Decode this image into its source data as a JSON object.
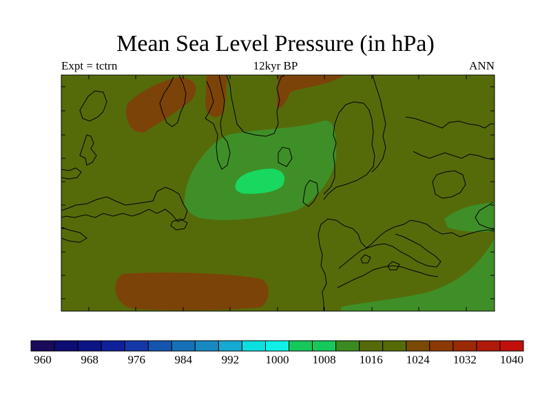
{
  "chart_data": {
    "type": "heatmap",
    "title": "Mean Sea Level Pressure (in hPa)",
    "subtitle_left": "Expt = tctrn",
    "subtitle_center": "12kyr BP",
    "subtitle_right": "ANN",
    "units": "hPa",
    "colorbar": {
      "levels": [
        960,
        964,
        968,
        972,
        976,
        980,
        984,
        988,
        992,
        996,
        1000,
        1004,
        1008,
        1012,
        1016,
        1020,
        1024,
        1028,
        1032,
        1036,
        1040
      ],
      "labels": [
        "960",
        "968",
        "976",
        "984",
        "992",
        "1000",
        "1008",
        "1016",
        "1024",
        "1032",
        "1040"
      ],
      "colors": [
        "#1a0a5a",
        "#0d0d73",
        "#0d1486",
        "#10209a",
        "#1438a8",
        "#1555b0",
        "#1670b8",
        "#1889c0",
        "#15aad2",
        "#0ddfe0",
        "#10f0e8",
        "#14c85a",
        "#16c85c",
        "#3c8a22",
        "#556b0a",
        "#556b0a",
        "#7a4a05",
        "#8c3a05",
        "#9a2a04",
        "#b01a0a",
        "#c0100c"
      ]
    },
    "regions": [
      {
        "name": "low-center",
        "level": 1004,
        "color": "#18d860"
      },
      {
        "name": "low-ring",
        "level": 1008,
        "color": "#3f8f28"
      },
      {
        "name": "low-east",
        "level": 1008,
        "color": "#3f8f28"
      },
      {
        "name": "low-southeast",
        "level": 1008,
        "color": "#3f8f28"
      },
      {
        "name": "background",
        "level": 1016,
        "color": "#556b0a"
      },
      {
        "name": "high-south",
        "level": 1024,
        "color": "#7b4308"
      },
      {
        "name": "high-north",
        "level": 1024,
        "color": "#7b4308"
      }
    ]
  }
}
